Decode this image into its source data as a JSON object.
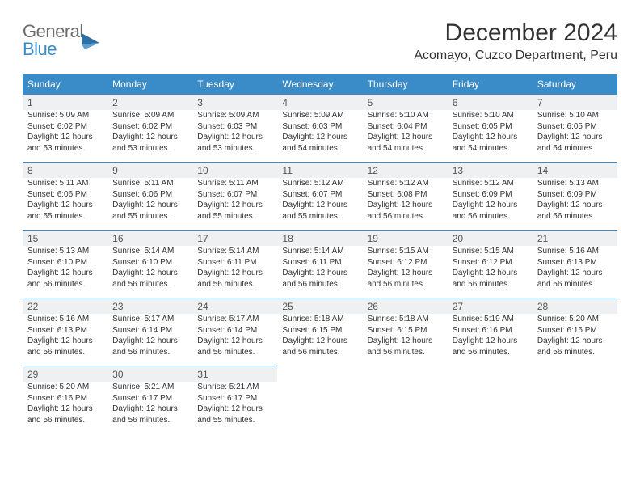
{
  "logo": {
    "line1": "General",
    "line2": "Blue"
  },
  "title": "December 2024",
  "location": "Acomayo, Cuzco Department, Peru",
  "colors": {
    "header_bg": "#3a8cc9",
    "header_fg": "#ffffff",
    "daynum_bg": "#eef0f2",
    "daynum_fg": "#555",
    "row_border": "#3a8cc9",
    "detail_fg": "#333"
  },
  "typography": {
    "title_fontsize": 30,
    "location_fontsize": 16,
    "dayheader_fontsize": 12,
    "daynum_fontsize": 12,
    "detail_fontsize": 10
  },
  "columns": [
    "Sunday",
    "Monday",
    "Tuesday",
    "Wednesday",
    "Thursday",
    "Friday",
    "Saturday"
  ],
  "weeks": [
    [
      {
        "n": "1",
        "sr": "Sunrise: 5:09 AM",
        "ss": "Sunset: 6:02 PM",
        "d1": "Daylight: 12 hours",
        "d2": "and 53 minutes."
      },
      {
        "n": "2",
        "sr": "Sunrise: 5:09 AM",
        "ss": "Sunset: 6:02 PM",
        "d1": "Daylight: 12 hours",
        "d2": "and 53 minutes."
      },
      {
        "n": "3",
        "sr": "Sunrise: 5:09 AM",
        "ss": "Sunset: 6:03 PM",
        "d1": "Daylight: 12 hours",
        "d2": "and 53 minutes."
      },
      {
        "n": "4",
        "sr": "Sunrise: 5:09 AM",
        "ss": "Sunset: 6:03 PM",
        "d1": "Daylight: 12 hours",
        "d2": "and 54 minutes."
      },
      {
        "n": "5",
        "sr": "Sunrise: 5:10 AM",
        "ss": "Sunset: 6:04 PM",
        "d1": "Daylight: 12 hours",
        "d2": "and 54 minutes."
      },
      {
        "n": "6",
        "sr": "Sunrise: 5:10 AM",
        "ss": "Sunset: 6:05 PM",
        "d1": "Daylight: 12 hours",
        "d2": "and 54 minutes."
      },
      {
        "n": "7",
        "sr": "Sunrise: 5:10 AM",
        "ss": "Sunset: 6:05 PM",
        "d1": "Daylight: 12 hours",
        "d2": "and 54 minutes."
      }
    ],
    [
      {
        "n": "8",
        "sr": "Sunrise: 5:11 AM",
        "ss": "Sunset: 6:06 PM",
        "d1": "Daylight: 12 hours",
        "d2": "and 55 minutes."
      },
      {
        "n": "9",
        "sr": "Sunrise: 5:11 AM",
        "ss": "Sunset: 6:06 PM",
        "d1": "Daylight: 12 hours",
        "d2": "and 55 minutes."
      },
      {
        "n": "10",
        "sr": "Sunrise: 5:11 AM",
        "ss": "Sunset: 6:07 PM",
        "d1": "Daylight: 12 hours",
        "d2": "and 55 minutes."
      },
      {
        "n": "11",
        "sr": "Sunrise: 5:12 AM",
        "ss": "Sunset: 6:07 PM",
        "d1": "Daylight: 12 hours",
        "d2": "and 55 minutes."
      },
      {
        "n": "12",
        "sr": "Sunrise: 5:12 AM",
        "ss": "Sunset: 6:08 PM",
        "d1": "Daylight: 12 hours",
        "d2": "and 56 minutes."
      },
      {
        "n": "13",
        "sr": "Sunrise: 5:12 AM",
        "ss": "Sunset: 6:09 PM",
        "d1": "Daylight: 12 hours",
        "d2": "and 56 minutes."
      },
      {
        "n": "14",
        "sr": "Sunrise: 5:13 AM",
        "ss": "Sunset: 6:09 PM",
        "d1": "Daylight: 12 hours",
        "d2": "and 56 minutes."
      }
    ],
    [
      {
        "n": "15",
        "sr": "Sunrise: 5:13 AM",
        "ss": "Sunset: 6:10 PM",
        "d1": "Daylight: 12 hours",
        "d2": "and 56 minutes."
      },
      {
        "n": "16",
        "sr": "Sunrise: 5:14 AM",
        "ss": "Sunset: 6:10 PM",
        "d1": "Daylight: 12 hours",
        "d2": "and 56 minutes."
      },
      {
        "n": "17",
        "sr": "Sunrise: 5:14 AM",
        "ss": "Sunset: 6:11 PM",
        "d1": "Daylight: 12 hours",
        "d2": "and 56 minutes."
      },
      {
        "n": "18",
        "sr": "Sunrise: 5:14 AM",
        "ss": "Sunset: 6:11 PM",
        "d1": "Daylight: 12 hours",
        "d2": "and 56 minutes."
      },
      {
        "n": "19",
        "sr": "Sunrise: 5:15 AM",
        "ss": "Sunset: 6:12 PM",
        "d1": "Daylight: 12 hours",
        "d2": "and 56 minutes."
      },
      {
        "n": "20",
        "sr": "Sunrise: 5:15 AM",
        "ss": "Sunset: 6:12 PM",
        "d1": "Daylight: 12 hours",
        "d2": "and 56 minutes."
      },
      {
        "n": "21",
        "sr": "Sunrise: 5:16 AM",
        "ss": "Sunset: 6:13 PM",
        "d1": "Daylight: 12 hours",
        "d2": "and 56 minutes."
      }
    ],
    [
      {
        "n": "22",
        "sr": "Sunrise: 5:16 AM",
        "ss": "Sunset: 6:13 PM",
        "d1": "Daylight: 12 hours",
        "d2": "and 56 minutes."
      },
      {
        "n": "23",
        "sr": "Sunrise: 5:17 AM",
        "ss": "Sunset: 6:14 PM",
        "d1": "Daylight: 12 hours",
        "d2": "and 56 minutes."
      },
      {
        "n": "24",
        "sr": "Sunrise: 5:17 AM",
        "ss": "Sunset: 6:14 PM",
        "d1": "Daylight: 12 hours",
        "d2": "and 56 minutes."
      },
      {
        "n": "25",
        "sr": "Sunrise: 5:18 AM",
        "ss": "Sunset: 6:15 PM",
        "d1": "Daylight: 12 hours",
        "d2": "and 56 minutes."
      },
      {
        "n": "26",
        "sr": "Sunrise: 5:18 AM",
        "ss": "Sunset: 6:15 PM",
        "d1": "Daylight: 12 hours",
        "d2": "and 56 minutes."
      },
      {
        "n": "27",
        "sr": "Sunrise: 5:19 AM",
        "ss": "Sunset: 6:16 PM",
        "d1": "Daylight: 12 hours",
        "d2": "and 56 minutes."
      },
      {
        "n": "28",
        "sr": "Sunrise: 5:20 AM",
        "ss": "Sunset: 6:16 PM",
        "d1": "Daylight: 12 hours",
        "d2": "and 56 minutes."
      }
    ],
    [
      {
        "n": "29",
        "sr": "Sunrise: 5:20 AM",
        "ss": "Sunset: 6:16 PM",
        "d1": "Daylight: 12 hours",
        "d2": "and 56 minutes."
      },
      {
        "n": "30",
        "sr": "Sunrise: 5:21 AM",
        "ss": "Sunset: 6:17 PM",
        "d1": "Daylight: 12 hours",
        "d2": "and 56 minutes."
      },
      {
        "n": "31",
        "sr": "Sunrise: 5:21 AM",
        "ss": "Sunset: 6:17 PM",
        "d1": "Daylight: 12 hours",
        "d2": "and 55 minutes."
      },
      null,
      null,
      null,
      null
    ]
  ]
}
